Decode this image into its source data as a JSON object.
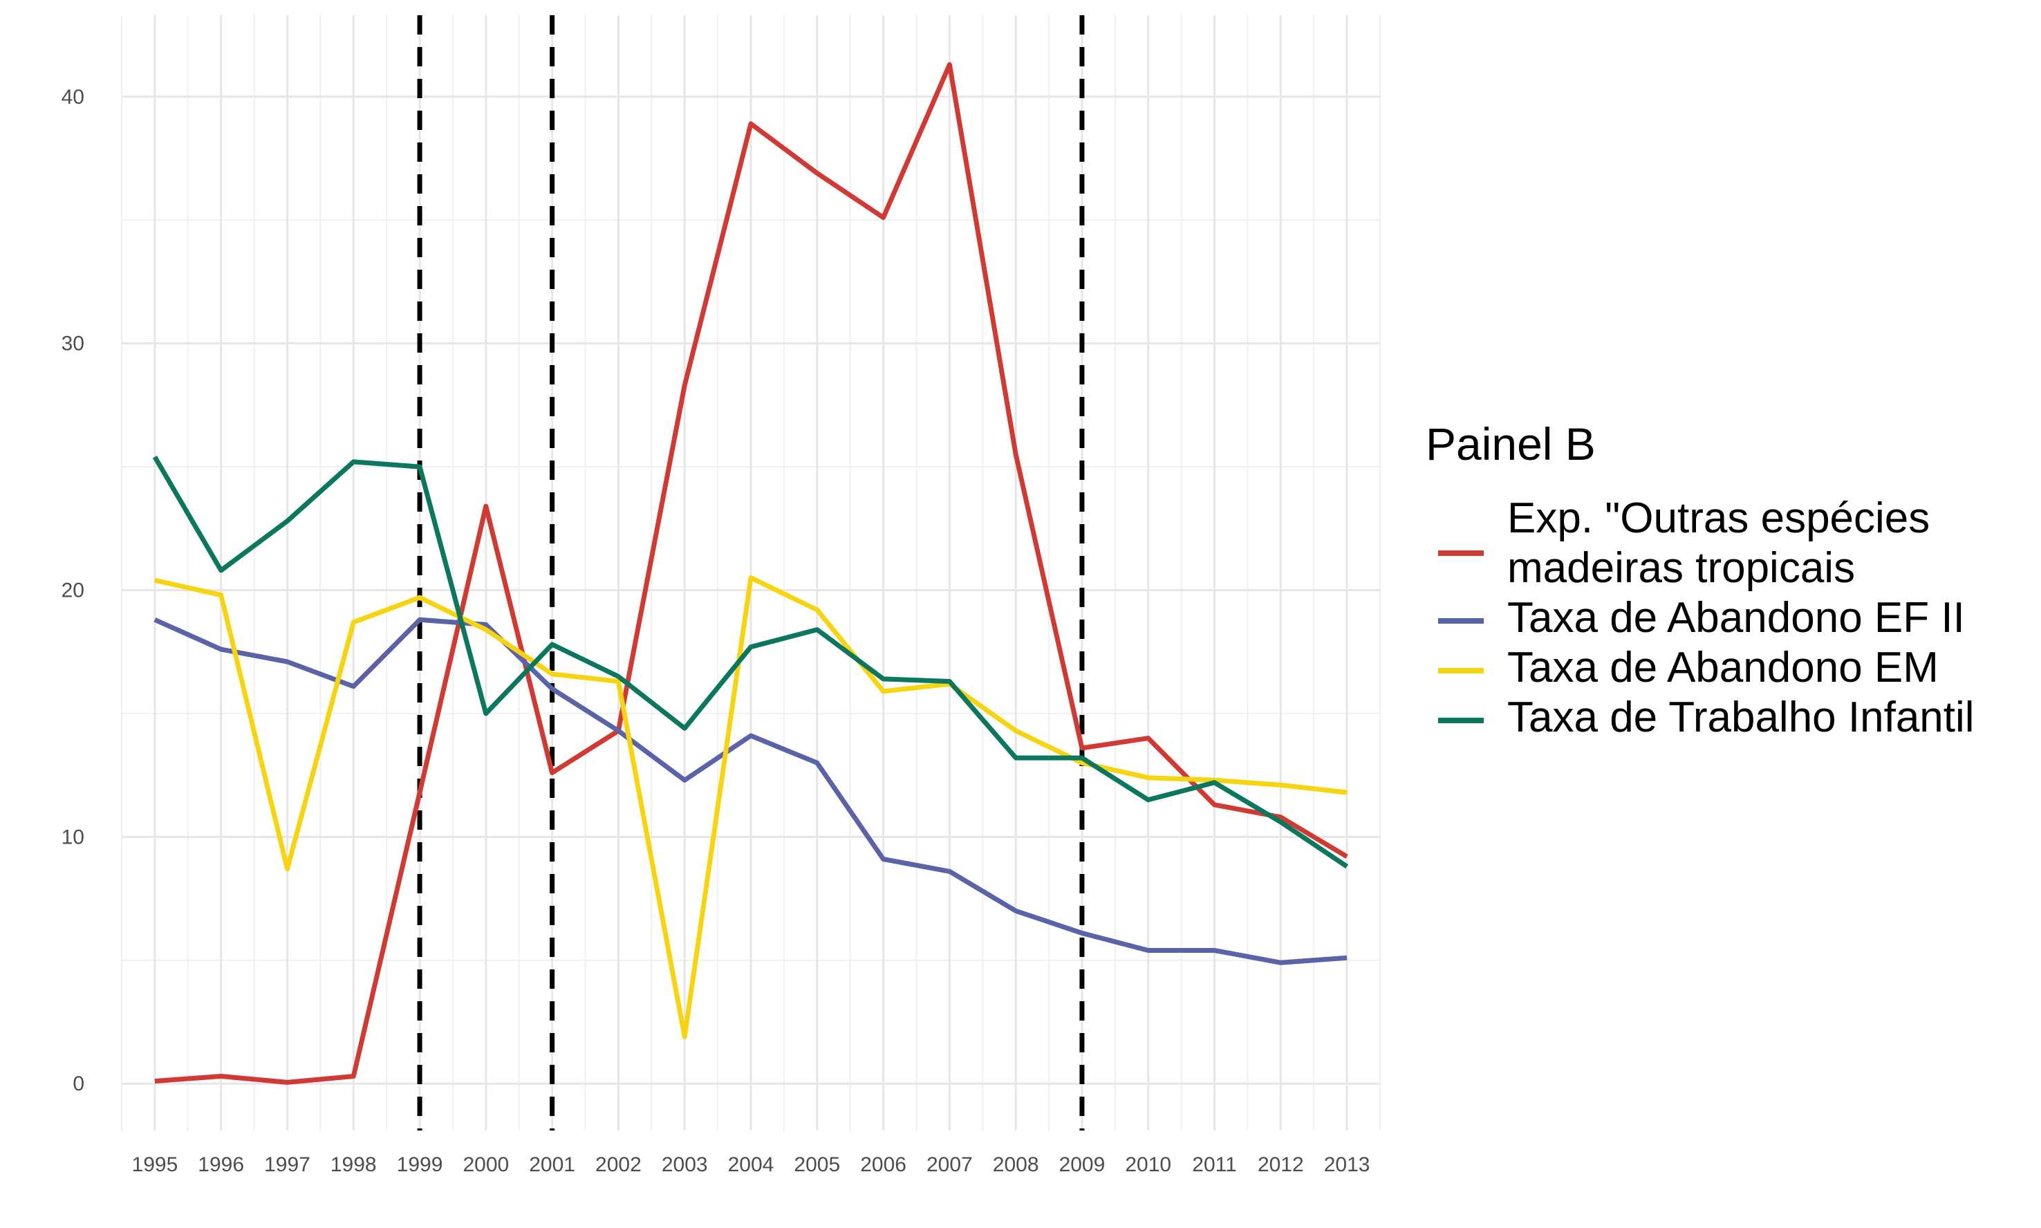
{
  "chart_data": {
    "type": "line",
    "title": "",
    "xlabel": "",
    "ylabel": "",
    "x": [
      1995,
      1996,
      1997,
      1998,
      1999,
      2000,
      2001,
      2002,
      2003,
      2004,
      2005,
      2006,
      2007,
      2008,
      2009,
      2010,
      2011,
      2012,
      2013
    ],
    "x_tick_labels": [
      "1995",
      "1996",
      "1997",
      "1998",
      "1999",
      "2000",
      "2001",
      "2002",
      "2003",
      "2004",
      "2005",
      "2006",
      "2007",
      "2008",
      "2009",
      "2010",
      "2011",
      "2012",
      "2013"
    ],
    "y_ticks": [
      0,
      10,
      20,
      30,
      40
    ],
    "y_tick_labels": [
      "0",
      "10",
      "20",
      "30",
      "40"
    ],
    "xlim": [
      1994.5,
      2013.5
    ],
    "ylim": [
      -1.9,
      43.3
    ],
    "grid": true,
    "vlines": [
      1999,
      2001,
      2009
    ],
    "legend": {
      "title": "Painel B",
      "position": "right"
    },
    "series": [
      {
        "name": "Exp. \"Outras espécies madeiras tropicais",
        "label_lines": [
          "Exp. \"Outras espécies",
          "madeiras tropicais"
        ],
        "color": "#d13a34",
        "values": [
          0.1,
          0.3,
          0.05,
          0.3,
          11.8,
          23.4,
          12.6,
          14.3,
          28.3,
          38.9,
          36.9,
          35.1,
          41.3,
          25.5,
          13.6,
          14.0,
          11.3,
          10.8,
          9.2
        ]
      },
      {
        "name": "Taxa de Abandono EF II",
        "label_lines": [
          "Taxa de Abandono EF II"
        ],
        "color": "#5a62a8",
        "values": [
          18.8,
          17.6,
          17.1,
          16.1,
          18.8,
          18.6,
          16.0,
          14.3,
          12.3,
          14.1,
          13.0,
          9.1,
          8.6,
          7.0,
          6.1,
          5.4,
          5.4,
          4.9,
          5.1
        ]
      },
      {
        "name": "Taxa de Abandono EM",
        "label_lines": [
          "Taxa de Abandono EM"
        ],
        "color": "#f6d40f",
        "values": [
          20.4,
          19.8,
          8.7,
          18.7,
          19.7,
          18.4,
          16.6,
          16.3,
          1.9,
          20.5,
          19.2,
          15.9,
          16.2,
          14.3,
          13.0,
          12.4,
          12.3,
          12.1,
          11.8
        ]
      },
      {
        "name": "Taxa de Trabalho Infantil",
        "label_lines": [
          "Taxa de Trabalho Infantil"
        ],
        "color": "#0b775e",
        "values": [
          25.4,
          20.8,
          22.8,
          25.2,
          25.0,
          15.0,
          17.8,
          16.5,
          14.4,
          17.7,
          18.4,
          16.4,
          16.3,
          13.2,
          13.2,
          11.5,
          12.2,
          10.6,
          8.8
        ]
      }
    ]
  }
}
